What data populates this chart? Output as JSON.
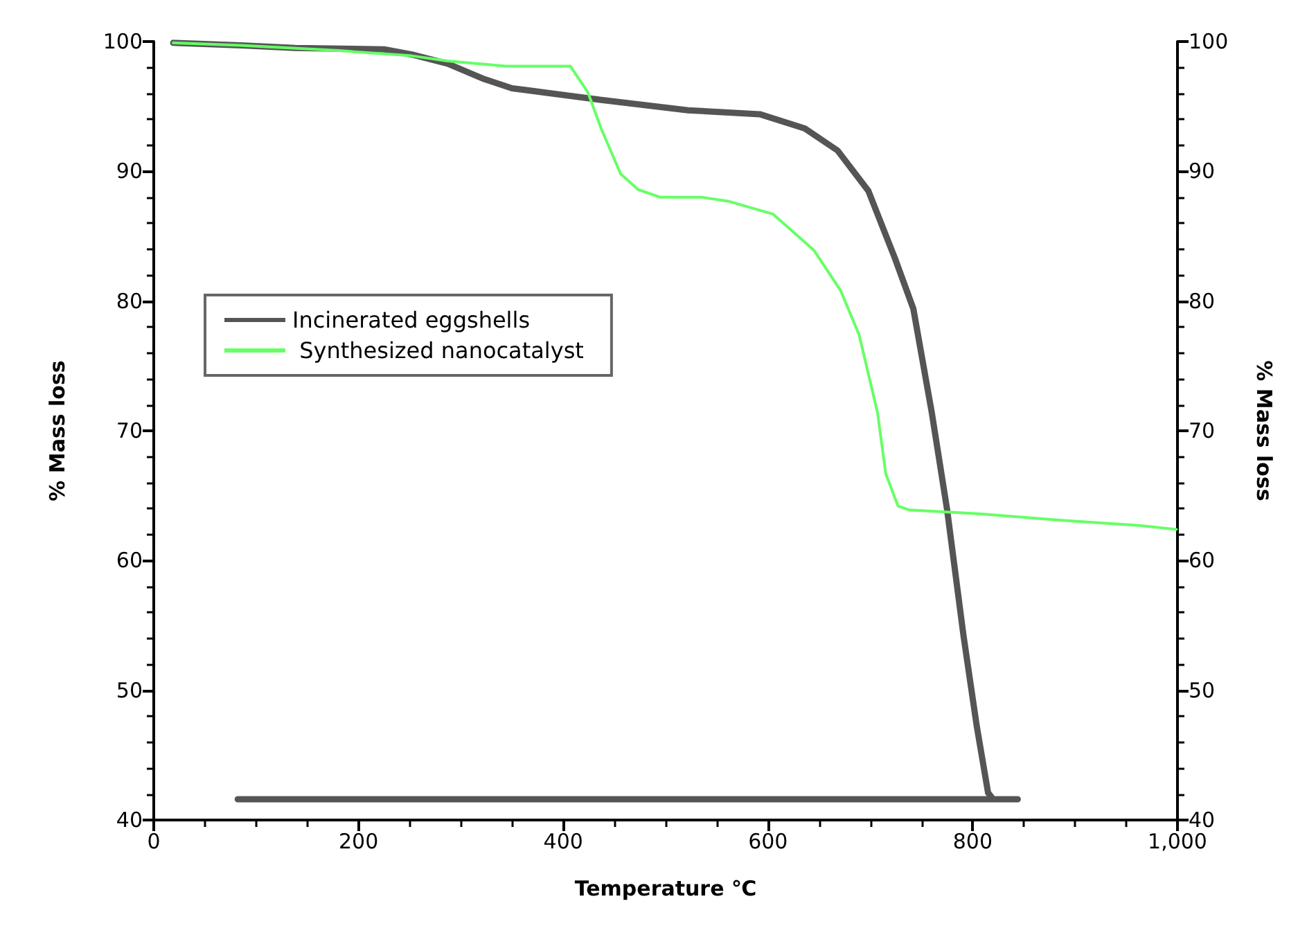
{
  "chart_data": {
    "type": "line",
    "xlabel": "Temperature ℃",
    "ylabel": "% Mass loss",
    "y2label": "% Mass loss",
    "xlim": [
      0,
      1000
    ],
    "xticks": [
      0,
      200,
      400,
      600,
      800,
      {
        "value": 1000,
        "label": "1,000"
      }
    ],
    "ylim": [
      40,
      100
    ],
    "yticks": [
      40,
      50,
      60,
      70,
      80,
      90,
      100
    ],
    "y2lim": [
      40,
      100
    ],
    "y2ticks": [
      40,
      50,
      60,
      70,
      80,
      90,
      100
    ],
    "grid": false,
    "legend": "left",
    "marker": "none",
    "line_style": "solid",
    "series": [
      {
        "name": "Incinerated eggshells",
        "color": "#555555",
        "x": [
          19,
          85,
          138,
          225,
          252,
          287,
          323,
          350,
          389,
          437,
          522,
          592,
          636,
          668,
          698,
          724,
          742,
          760,
          775,
          791,
          804,
          815,
          820,
          844,
          82
        ],
        "values": [
          99.9,
          99.7,
          99.5,
          99.4,
          99.0,
          98.3,
          97.1,
          96.4,
          96.0,
          95.5,
          94.7,
          94.4,
          93.3,
          91.6,
          88.5,
          83.3,
          79.4,
          71.4,
          63.9,
          54.2,
          47.2,
          42.1,
          41.6,
          41.6,
          41.6
        ]
      },
      {
        "name": " Synthesized nanocatalyst",
        "color": "#66ff66",
        "x": [
          19,
          85,
          181,
          252,
          287,
          344,
          407,
          424,
          437,
          456,
          473,
          495,
          535,
          561,
          605,
          645,
          671,
          689,
          707,
          715,
          727,
          738,
          808,
          887,
          963,
          999
        ],
        "values": [
          99.9,
          99.7,
          99.3,
          98.9,
          98.5,
          98.1,
          98.1,
          96.1,
          93.3,
          89.8,
          88.6,
          88.0,
          88.0,
          87.7,
          86.7,
          83.9,
          80.8,
          77.4,
          71.4,
          66.7,
          64.2,
          63.9,
          63.6,
          63.1,
          62.7,
          62.4
        ]
      }
    ]
  }
}
